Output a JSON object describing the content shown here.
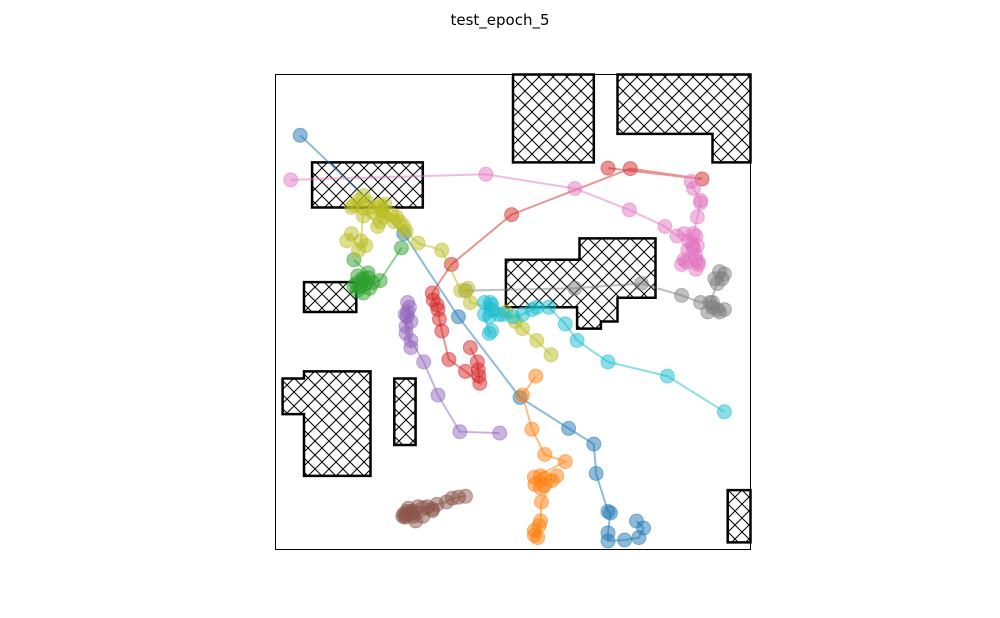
{
  "chart_data": {
    "type": "scatter",
    "title": "test_epoch_5",
    "xlim": [
      0,
      1000
    ],
    "ylim": [
      0,
      1000
    ],
    "grid": false,
    "obstacles": [
      [
        [
          500,
          1000
        ],
        [
          670,
          1000
        ],
        [
          670,
          815
        ],
        [
          500,
          815
        ]
      ],
      [
        [
          720,
          1000
        ],
        [
          1000,
          1000
        ],
        [
          1000,
          815
        ],
        [
          920,
          815
        ],
        [
          920,
          875
        ],
        [
          720,
          875
        ]
      ],
      [
        [
          77,
          815
        ],
        [
          310,
          815
        ],
        [
          310,
          720
        ],
        [
          77,
          720
        ]
      ],
      [
        [
          60,
          563
        ],
        [
          170,
          563
        ],
        [
          170,
          500
        ],
        [
          60,
          500
        ]
      ],
      [
        [
          485,
          610
        ],
        [
          640,
          610
        ],
        [
          640,
          655
        ],
        [
          800,
          655
        ],
        [
          800,
          530
        ],
        [
          720,
          530
        ],
        [
          720,
          480
        ],
        [
          685,
          480
        ],
        [
          685,
          465
        ],
        [
          635,
          465
        ],
        [
          635,
          510
        ],
        [
          485,
          510
        ]
      ],
      [
        [
          15,
          360
        ],
        [
          60,
          360
        ],
        [
          60,
          375
        ],
        [
          200,
          375
        ],
        [
          200,
          155
        ],
        [
          60,
          155
        ],
        [
          60,
          285
        ],
        [
          15,
          285
        ]
      ],
      [
        [
          250,
          360
        ],
        [
          295,
          360
        ],
        [
          295,
          220
        ],
        [
          250,
          220
        ]
      ],
      [
        [
          952,
          125
        ],
        [
          1000,
          125
        ],
        [
          1000,
          15
        ],
        [
          952,
          15
        ]
      ]
    ],
    "trajectories": [
      {
        "color": "#1f77b4",
        "points": [
          [
            52,
            872
          ],
          [
            270,
            665
          ],
          [
            385,
            490
          ],
          [
            515,
            320
          ],
          [
            617,
            255
          ],
          [
            670,
            222
          ],
          [
            675,
            160
          ],
          [
            700,
            80
          ],
          [
            705,
            77
          ],
          [
            700,
            35
          ],
          [
            700,
            18
          ],
          [
            735,
            20
          ],
          [
            765,
            25
          ],
          [
            775,
            45
          ],
          [
            760,
            60
          ]
        ]
      },
      {
        "color": "#ff7f0e",
        "points": [
          [
            548,
            365
          ],
          [
            520,
            325
          ],
          [
            540,
            253
          ],
          [
            567,
            200
          ],
          [
            610,
            185
          ],
          [
            545,
            152
          ],
          [
            546,
            137
          ],
          [
            558,
            130
          ],
          [
            566,
            135
          ],
          [
            567,
            150
          ],
          [
            558,
            155
          ],
          [
            582,
            145
          ],
          [
            592,
            155
          ],
          [
            560,
            100
          ],
          [
            558,
            60
          ],
          [
            555,
            50
          ],
          [
            552,
            25
          ],
          [
            545,
            40
          ],
          [
            545,
            30
          ]
        ]
      },
      {
        "color": "#2ca02c",
        "points": [
          [
            165,
            610
          ],
          [
            195,
            582
          ],
          [
            185,
            567
          ],
          [
            170,
            560
          ],
          [
            165,
            555
          ],
          [
            172,
            545
          ],
          [
            185,
            540
          ],
          [
            198,
            550
          ],
          [
            205,
            562
          ],
          [
            195,
            572
          ],
          [
            183,
            570
          ],
          [
            173,
            576
          ],
          [
            177,
            553
          ],
          [
            190,
            560
          ],
          [
            220,
            566
          ],
          [
            265,
            635
          ]
        ]
      },
      {
        "color": "#d62728",
        "points": [
          [
            700,
            803
          ],
          [
            898,
            780
          ],
          [
            747,
            802
          ],
          [
            497,
            705
          ],
          [
            370,
            600
          ],
          [
            330,
            540
          ],
          [
            332,
            525
          ],
          [
            340,
            515
          ],
          [
            342,
            505
          ],
          [
            345,
            485
          ],
          [
            350,
            460
          ],
          [
            365,
            400
          ],
          [
            400,
            375
          ],
          [
            430,
            350
          ],
          [
            428,
            365
          ],
          [
            427,
            378
          ],
          [
            425,
            395
          ],
          [
            410,
            425
          ]
        ]
      },
      {
        "color": "#9467bd",
        "points": [
          [
            472,
            245
          ],
          [
            388,
            248
          ],
          [
            342,
            325
          ],
          [
            312,
            395
          ],
          [
            285,
            440
          ],
          [
            273,
            495
          ],
          [
            275,
            455
          ],
          [
            285,
            425
          ],
          [
            275,
            470
          ],
          [
            277,
            490
          ],
          [
            278,
            500
          ],
          [
            282,
            510
          ],
          [
            278,
            520
          ],
          [
            285,
            480
          ]
        ]
      },
      {
        "color": "#8c564b",
        "points": [
          [
            400,
            112
          ],
          [
            385,
            110
          ],
          [
            372,
            108
          ],
          [
            360,
            100
          ],
          [
            340,
            95
          ],
          [
            330,
            82
          ],
          [
            310,
            70
          ],
          [
            295,
            60
          ],
          [
            290,
            70
          ],
          [
            285,
            80
          ],
          [
            280,
            87
          ],
          [
            276,
            80
          ],
          [
            270,
            75
          ],
          [
            273,
            68
          ],
          [
            268,
            70
          ],
          [
            275,
            72
          ],
          [
            285,
            75
          ],
          [
            292,
            80
          ],
          [
            300,
            90
          ],
          [
            310,
            88
          ],
          [
            320,
            90
          ],
          [
            330,
            85
          ]
        ]
      },
      {
        "color": "#e377c2",
        "points": [
          [
            32,
            778
          ],
          [
            443,
            790
          ],
          [
            630,
            760
          ],
          [
            745,
            715
          ],
          [
            820,
            680
          ],
          [
            845,
            660
          ],
          [
            860,
            665
          ],
          [
            870,
            650
          ],
          [
            868,
            630
          ],
          [
            860,
            610
          ],
          [
            855,
            600
          ],
          [
            865,
            605
          ],
          [
            880,
            635
          ],
          [
            885,
            660
          ],
          [
            888,
            640
          ],
          [
            884,
            620
          ],
          [
            890,
            605
          ],
          [
            885,
            590
          ],
          [
            890,
            600
          ],
          [
            885,
            610
          ],
          [
            878,
            640
          ],
          [
            880,
            665
          ],
          [
            888,
            700
          ],
          [
            895,
            730
          ],
          [
            895,
            735
          ],
          [
            880,
            760
          ],
          [
            875,
            775
          ]
        ]
      },
      {
        "color": "#7f7f7f",
        "points": [
          [
            400,
            545
          ],
          [
            630,
            550
          ],
          [
            770,
            560
          ],
          [
            855,
            535
          ],
          [
            895,
            520
          ],
          [
            920,
            520
          ],
          [
            935,
            500
          ],
          [
            945,
            505
          ],
          [
            930,
            505
          ],
          [
            920,
            510
          ],
          [
            910,
            500
          ],
          [
            915,
            520
          ],
          [
            930,
            560
          ],
          [
            940,
            570
          ],
          [
            945,
            580
          ],
          [
            935,
            585
          ],
          [
            925,
            570
          ]
        ]
      },
      {
        "color": "#bcbd22",
        "points": [
          [
            580,
            410
          ],
          [
            550,
            440
          ],
          [
            520,
            465
          ],
          [
            505,
            480
          ],
          [
            485,
            500
          ],
          [
            410,
            520
          ],
          [
            405,
            550
          ],
          [
            390,
            545
          ],
          [
            350,
            630
          ],
          [
            300,
            645
          ],
          [
            275,
            670
          ],
          [
            270,
            680
          ],
          [
            262,
            690
          ],
          [
            255,
            700
          ],
          [
            250,
            690
          ],
          [
            245,
            705
          ],
          [
            225,
            715
          ],
          [
            210,
            720
          ],
          [
            195,
            730
          ],
          [
            185,
            745
          ],
          [
            175,
            735
          ],
          [
            165,
            725
          ],
          [
            160,
            720
          ],
          [
            185,
            702
          ],
          [
            205,
            710
          ],
          [
            220,
            725
          ],
          [
            230,
            727
          ],
          [
            225,
            712
          ],
          [
            228,
            700
          ],
          [
            220,
            690
          ],
          [
            215,
            680
          ],
          [
            185,
            720
          ],
          [
            180,
            650
          ],
          [
            190,
            640
          ],
          [
            175,
            630
          ],
          [
            160,
            665
          ],
          [
            150,
            650
          ]
        ]
      },
      {
        "color": "#17becf",
        "points": [
          [
            945,
            290
          ],
          [
            825,
            365
          ],
          [
            700,
            395
          ],
          [
            635,
            440
          ],
          [
            610,
            475
          ],
          [
            575,
            510
          ],
          [
            550,
            510
          ],
          [
            540,
            505
          ],
          [
            520,
            495
          ],
          [
            500,
            490
          ],
          [
            480,
            495
          ],
          [
            470,
            495
          ],
          [
            450,
            490
          ],
          [
            455,
            505
          ],
          [
            452,
            520
          ],
          [
            455,
            515
          ],
          [
            440,
            520
          ],
          [
            440,
            495
          ],
          [
            450,
            455
          ],
          [
            455,
            460
          ]
        ]
      }
    ]
  }
}
